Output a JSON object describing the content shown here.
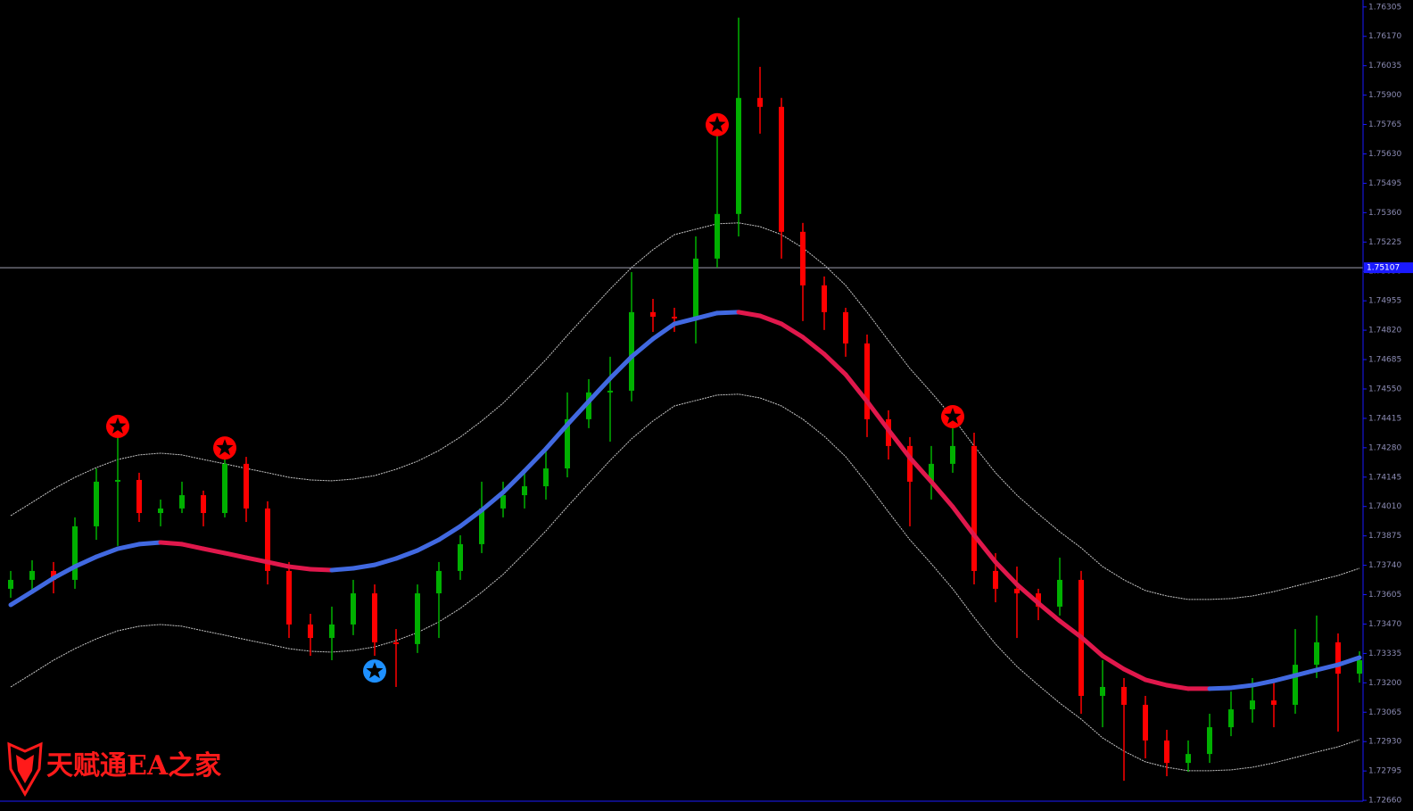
{
  "chart_data": {
    "type": "candlestick",
    "watermark": "天赋通EA之家",
    "up_color": "#00b000",
    "down_color": "#ff0000",
    "ylim": [
      1.72648,
      1.76337
    ],
    "yticks": [
      {
        "value": 1.7266,
        "label": "1.72660"
      },
      1.72795,
      {
        "value": 1.7293,
        "label": "1.72930"
      },
      1.73065,
      {
        "value": 1.732,
        "label": "1.73200"
      },
      1.73335,
      {
        "value": 1.7347,
        "label": "1.73470"
      },
      1.73605,
      {
        "value": 1.7374,
        "label": "1.73740"
      },
      1.73875,
      {
        "value": 1.7401,
        "label": "1.74010"
      },
      1.74145,
      {
        "value": 1.7428,
        "label": "1.74280"
      },
      1.74415,
      {
        "value": 1.7455,
        "label": "1.74550"
      },
      1.74685,
      {
        "value": 1.7482,
        "label": "1.74820"
      },
      1.74955,
      {
        "value": 1.7509,
        "label": "1.75090"
      },
      1.75225,
      {
        "value": 1.7536,
        "label": "1.75360"
      },
      1.75495,
      {
        "value": 1.7563,
        "label": "1.75630"
      },
      1.75765,
      {
        "value": 1.759,
        "label": "1.75900"
      },
      1.76035,
      {
        "value": 1.7617,
        "label": "1.76170"
      },
      1.76305
    ],
    "current_price": 1.75107,
    "ohlc": [
      [
        1.73632,
        1.73714,
        1.73591,
        1.73673
      ],
      [
        1.73673,
        1.73763,
        1.73624,
        1.73714
      ],
      [
        1.73714,
        1.73755,
        1.73611,
        1.73673
      ],
      [
        1.73673,
        1.7396,
        1.73632,
        1.73919
      ],
      [
        1.73919,
        1.74185,
        1.73857,
        1.74124
      ],
      [
        1.74124,
        1.74329,
        1.73829,
        1.74132
      ],
      [
        1.74132,
        1.74165,
        1.73939,
        1.7398
      ],
      [
        1.7398,
        1.74042,
        1.73919,
        1.74001
      ],
      [
        1.74001,
        1.74124,
        1.7398,
        1.74062
      ],
      [
        1.74062,
        1.74083,
        1.73919,
        1.7398
      ],
      [
        1.7398,
        1.74288,
        1.7396,
        1.74206
      ],
      [
        1.74206,
        1.74238,
        1.73939,
        1.74001
      ],
      [
        1.74001,
        1.74034,
        1.73652,
        1.73714
      ],
      [
        1.73714,
        1.73755,
        1.73406,
        1.73468
      ],
      [
        1.73468,
        1.73517,
        1.73324,
        1.73406
      ],
      [
        1.73406,
        1.7355,
        1.73304,
        1.73468
      ],
      [
        1.73468,
        1.73673,
        1.73419,
        1.73611
      ],
      [
        1.73611,
        1.73652,
        1.73324,
        1.73386
      ],
      [
        1.73386,
        1.73447,
        1.73181,
        1.73378
      ],
      [
        1.73378,
        1.73652,
        1.73337,
        1.73611
      ],
      [
        1.73611,
        1.73755,
        1.73406,
        1.73714
      ],
      [
        1.73714,
        1.73878,
        1.73673,
        1.73837
      ],
      [
        1.73837,
        1.74124,
        1.73796,
        1.74001
      ],
      [
        1.74001,
        1.74124,
        1.7396,
        1.74062
      ],
      [
        1.74062,
        1.74165,
        1.74001,
        1.74103
      ],
      [
        1.74103,
        1.74288,
        1.74042,
        1.74185
      ],
      [
        1.74185,
        1.74534,
        1.74144,
        1.74411
      ],
      [
        1.74411,
        1.74595,
        1.7437,
        1.74534
      ],
      [
        1.74534,
        1.74698,
        1.74308,
        1.74542
      ],
      [
        1.74542,
        1.75087,
        1.74493,
        1.74903
      ],
      [
        1.74903,
        1.74964,
        1.74812,
        1.74882
      ],
      [
        1.74882,
        1.74923,
        1.74812,
        1.74874
      ],
      [
        1.74874,
        1.75251,
        1.74759,
        1.75149
      ],
      [
        1.75149,
        1.75723,
        1.75108,
        1.75354
      ],
      [
        1.75354,
        1.76256,
        1.75251,
        1.75887
      ],
      [
        1.75887,
        1.7603,
        1.75723,
        1.75846
      ],
      [
        1.75846,
        1.75887,
        1.75149,
        1.75272
      ],
      [
        1.75272,
        1.75313,
        1.74862,
        1.75026
      ],
      [
        1.75026,
        1.75067,
        1.74821,
        1.74903
      ],
      [
        1.74903,
        1.74923,
        1.74698,
        1.74759
      ],
      [
        1.74759,
        1.748,
        1.74329,
        1.74411
      ],
      [
        1.74411,
        1.74452,
        1.74226,
        1.74288
      ],
      [
        1.74288,
        1.74329,
        1.73919,
        1.74124
      ],
      [
        1.74124,
        1.74288,
        1.74042,
        1.74206
      ],
      [
        1.74206,
        1.7437,
        1.74165,
        1.74288
      ],
      [
        1.74288,
        1.74349,
        1.73652,
        1.73714
      ],
      [
        1.73714,
        1.73796,
        1.7357,
        1.73632
      ],
      [
        1.73632,
        1.73734,
        1.73406,
        1.73611
      ],
      [
        1.73611,
        1.73632,
        1.73488,
        1.7355
      ],
      [
        1.7355,
        1.73775,
        1.73509,
        1.73673
      ],
      [
        1.73673,
        1.73714,
        1.73058,
        1.7314
      ],
      [
        1.7314,
        1.73304,
        1.72996,
        1.73181
      ],
      [
        1.73181,
        1.73222,
        1.7275,
        1.73099
      ],
      [
        1.73099,
        1.7314,
        1.72853,
        1.72935
      ],
      [
        1.72935,
        1.72984,
        1.72771,
        1.72832
      ],
      [
        1.72832,
        1.72935,
        1.72791,
        1.72873
      ],
      [
        1.72873,
        1.73058,
        1.72832,
        1.72996
      ],
      [
        1.72996,
        1.7316,
        1.72955,
        1.73078
      ],
      [
        1.73078,
        1.73222,
        1.73017,
        1.73119
      ],
      [
        1.73119,
        1.73201,
        1.72996,
        1.73099
      ],
      [
        1.73099,
        1.73447,
        1.73058,
        1.73283
      ],
      [
        1.73283,
        1.73509,
        1.73222,
        1.73386
      ],
      [
        1.73386,
        1.73427,
        1.72976,
        1.73242
      ],
      [
        1.73242,
        1.73345,
        1.73201,
        1.73304
      ]
    ],
    "middle": {
      "rising_color": "#4169e1",
      "falling_color": "#e0184c",
      "values": [
        1.73558,
        1.73619,
        1.73681,
        1.73734,
        1.73779,
        1.73816,
        1.73837,
        1.73845,
        1.73837,
        1.73816,
        1.73796,
        1.73775,
        1.73755,
        1.73734,
        1.73722,
        1.73718,
        1.73726,
        1.73742,
        1.73771,
        1.73808,
        1.73857,
        1.73919,
        1.73993,
        1.74075,
        1.74173,
        1.74275,
        1.74386,
        1.74493,
        1.74599,
        1.74698,
        1.7478,
        1.74849,
        1.74874,
        1.74899,
        1.74903,
        1.74886,
        1.74849,
        1.74788,
        1.7471,
        1.74616,
        1.74493,
        1.74362,
        1.74234,
        1.74124,
        1.74009,
        1.73878,
        1.73755,
        1.73652,
        1.73566,
        1.73484,
        1.7341,
        1.73324,
        1.73263,
        1.73214,
        1.73189,
        1.73173,
        1.73173,
        1.73177,
        1.73189,
        1.73209,
        1.73234,
        1.73259,
        1.73283,
        1.73316
      ]
    },
    "upper": {
      "color": "#c8c8c8",
      "values": [
        1.73968,
        1.74029,
        1.74091,
        1.74144,
        1.74189,
        1.74226,
        1.74247,
        1.74255,
        1.74247,
        1.74226,
        1.74206,
        1.74185,
        1.74165,
        1.74144,
        1.74132,
        1.74128,
        1.74136,
        1.74152,
        1.74181,
        1.74218,
        1.74267,
        1.74329,
        1.74403,
        1.74485,
        1.74583,
        1.74685,
        1.74796,
        1.74903,
        1.75009,
        1.75108,
        1.7519,
        1.75259,
        1.75284,
        1.75309,
        1.75313,
        1.75296,
        1.75259,
        1.75198,
        1.7512,
        1.75026,
        1.74903,
        1.74772,
        1.74644,
        1.74534,
        1.74419,
        1.74288,
        1.74165,
        1.74062,
        1.73976,
        1.73894,
        1.7382,
        1.73734,
        1.73673,
        1.73624,
        1.73599,
        1.73583,
        1.73583,
        1.73587,
        1.73599,
        1.73619,
        1.73644,
        1.73669,
        1.73693,
        1.73726
      ]
    },
    "lower": {
      "color": "#c8c8c8",
      "values": [
        1.73181,
        1.73242,
        1.73304,
        1.73357,
        1.73402,
        1.73439,
        1.7346,
        1.73468,
        1.7346,
        1.73439,
        1.73419,
        1.73398,
        1.73378,
        1.73357,
        1.73345,
        1.73341,
        1.73349,
        1.73365,
        1.73394,
        1.73431,
        1.7348,
        1.73542,
        1.73616,
        1.73698,
        1.73796,
        1.73898,
        1.74009,
        1.74116,
        1.74222,
        1.74321,
        1.74403,
        1.74472,
        1.74497,
        1.74522,
        1.74526,
        1.74509,
        1.74472,
        1.74411,
        1.74333,
        1.74239,
        1.74116,
        1.73985,
        1.73857,
        1.73747,
        1.73632,
        1.73501,
        1.73378,
        1.73275,
        1.73189,
        1.73107,
        1.73033,
        1.72947,
        1.72886,
        1.72837,
        1.72812,
        1.72796,
        1.72796,
        1.728,
        1.72812,
        1.72832,
        1.72857,
        1.72882,
        1.72906,
        1.72939
      ]
    },
    "sell_signals": {
      "color": "#ff0000",
      "points": [
        {
          "index": 5,
          "value": 1.74378
        },
        {
          "index": 10,
          "value": 1.74279
        },
        {
          "index": 33,
          "value": 1.75764
        },
        {
          "index": 44,
          "value": 1.74423
        }
      ]
    },
    "buy_signals": {
      "color": "#1e90ff",
      "points": [
        {
          "index": 17,
          "value": 1.73254
        }
      ]
    }
  }
}
